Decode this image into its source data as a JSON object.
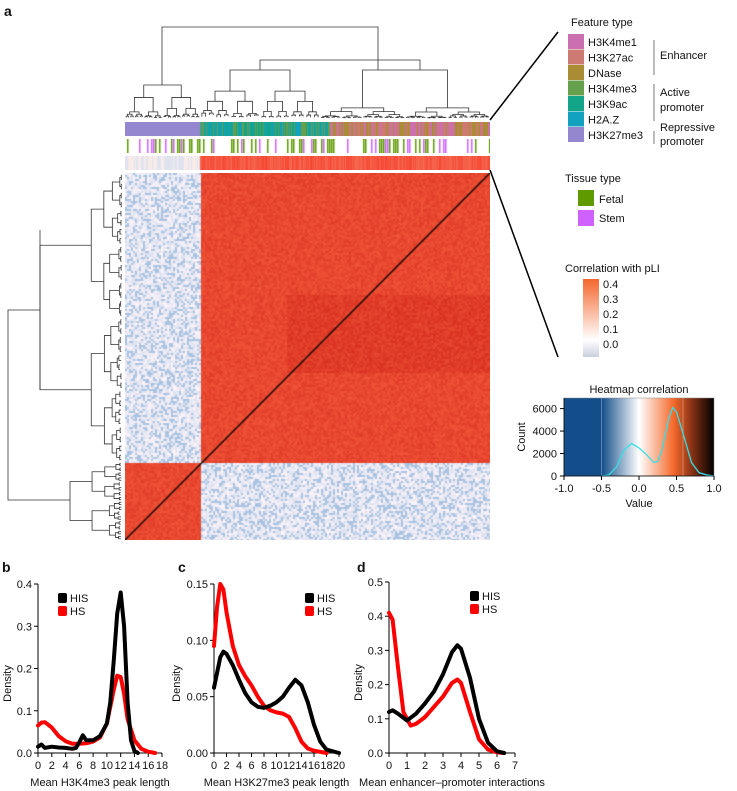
{
  "panel_labels": {
    "a": "a",
    "b": "b",
    "c": "c",
    "d": "d"
  },
  "legend": {
    "feature_type": {
      "title": "Feature type",
      "items": [
        {
          "label": "H3K4me1",
          "color": "#cc6fb0"
        },
        {
          "label": "H3K27ac",
          "color": "#cd7a72"
        },
        {
          "label": "DNase",
          "color": "#a98c33"
        },
        {
          "label": "H3K4me3",
          "color": "#67a04a"
        },
        {
          "label": "H3K9ac",
          "color": "#12a58a"
        },
        {
          "label": "H2A.Z",
          "color": "#12a1be"
        },
        {
          "label": "H3K27me3",
          "color": "#9487d0"
        }
      ],
      "groups": {
        "enhancer": "Enhancer",
        "active_1": "Active",
        "active_2": "promoter",
        "repressive_1": "Repressive",
        "repressive_2": "promoter"
      }
    },
    "tissue_type": {
      "title": "Tissue type",
      "items": [
        {
          "label": "Fetal",
          "color": "#5e9a00"
        },
        {
          "label": "Stem",
          "color": "#cf62ff"
        }
      ]
    },
    "pli": {
      "title": "Correlation with pLI",
      "ticks": [
        "0.4",
        "0.3",
        "0.2",
        "0.1",
        "0.0"
      ]
    }
  },
  "colors": {
    "his": "#000000",
    "hs": "#ff0000",
    "heat_high": "#f26b3a",
    "heat_low": "#2f6aa6",
    "histline": "#33e0e8"
  },
  "chart_data": [
    {
      "type": "histogram",
      "title": "Heatmap correlation",
      "xlabel": "Value",
      "ylabel": "Count",
      "xlim": [
        -1,
        1
      ],
      "ylim": [
        0,
        6500
      ],
      "xticks": [
        "-1.0",
        "-0.5",
        "0.0",
        "0.5",
        "1.0"
      ],
      "yticks": [
        "0",
        "2000",
        "4000",
        "6000"
      ],
      "x": [
        -0.5,
        -0.4,
        -0.3,
        -0.2,
        -0.1,
        0,
        0.1,
        0.2,
        0.25,
        0.3,
        0.4,
        0.45,
        0.5,
        0.6,
        0.7,
        0.8,
        0.9,
        1.0
      ],
      "values": [
        0,
        100,
        800,
        2300,
        2900,
        2500,
        1900,
        1200,
        1300,
        2200,
        5200,
        6100,
        5700,
        3500,
        1200,
        300,
        100,
        0
      ]
    },
    {
      "type": "line",
      "xlabel": "Mean H3K4me3 peak length",
      "ylabel": "Density",
      "xlim": [
        0,
        18
      ],
      "ylim": [
        0,
        0.4
      ],
      "xticks": [
        "0",
        "2",
        "4",
        "6",
        "8",
        "10",
        "12",
        "14",
        "16",
        "18"
      ],
      "yticks": [
        "0.0",
        "0.1",
        "0.2",
        "0.3",
        "0.4"
      ],
      "legend": "top-left",
      "series": [
        {
          "name": "HIS",
          "x": [
            0,
            0.5,
            1,
            2,
            3,
            4,
            5,
            5.5,
            6,
            6.5,
            7,
            8,
            9,
            10,
            10.5,
            11,
            11.5,
            12,
            12.5,
            13,
            13.5,
            14,
            14.5
          ],
          "values": [
            0.015,
            0.02,
            0.012,
            0.015,
            0.013,
            0.012,
            0.01,
            0.012,
            0.025,
            0.042,
            0.03,
            0.03,
            0.04,
            0.07,
            0.12,
            0.22,
            0.33,
            0.38,
            0.3,
            0.12,
            0.03,
            0.005,
            0
          ]
        },
        {
          "name": "HS",
          "x": [
            0,
            0.5,
            1,
            2,
            3,
            4,
            5,
            6,
            7,
            8,
            9,
            10,
            11,
            11.5,
            12,
            12.5,
            13,
            14,
            15,
            16,
            17
          ],
          "values": [
            0.065,
            0.072,
            0.073,
            0.06,
            0.04,
            0.028,
            0.022,
            0.022,
            0.023,
            0.027,
            0.037,
            0.07,
            0.15,
            0.183,
            0.18,
            0.14,
            0.08,
            0.03,
            0.01,
            0.003,
            0
          ]
        }
      ]
    },
    {
      "type": "line",
      "xlabel": "Mean H3K27me3 peak length",
      "ylabel": "Density",
      "xlim": [
        0,
        20
      ],
      "ylim": [
        0,
        0.15
      ],
      "xticks": [
        "0",
        "2",
        "4",
        "6",
        "8",
        "10",
        "12",
        "14",
        "16",
        "18",
        "20"
      ],
      "yticks": [
        "0.00",
        "0.05",
        "0.10",
        "0.15"
      ],
      "legend": "top-right",
      "series": [
        {
          "name": "HIS",
          "x": [
            0,
            1,
            1.5,
            2,
            3,
            4,
            5,
            6,
            7,
            8,
            9,
            10,
            11,
            12,
            13,
            14,
            15,
            16,
            17,
            18,
            20
          ],
          "values": [
            0.058,
            0.085,
            0.09,
            0.088,
            0.078,
            0.065,
            0.053,
            0.045,
            0.041,
            0.04,
            0.042,
            0.045,
            0.05,
            0.058,
            0.065,
            0.06,
            0.045,
            0.025,
            0.01,
            0.003,
            0
          ]
        },
        {
          "name": "HS",
          "x": [
            0,
            0.5,
            1,
            1.5,
            2,
            3,
            4,
            5,
            6,
            7,
            8,
            9,
            10,
            11,
            12,
            13,
            14,
            15,
            16,
            18
          ],
          "values": [
            0.095,
            0.13,
            0.15,
            0.145,
            0.125,
            0.095,
            0.078,
            0.068,
            0.06,
            0.05,
            0.042,
            0.038,
            0.036,
            0.035,
            0.032,
            0.022,
            0.01,
            0.004,
            0.002,
            0
          ]
        }
      ]
    },
    {
      "type": "line",
      "xlabel": "Mean enhancer–promoter interactions",
      "ylabel": "Density",
      "xlim": [
        0,
        7
      ],
      "ylim": [
        0,
        0.5
      ],
      "xticks": [
        "0",
        "1",
        "2",
        "3",
        "4",
        "5",
        "6",
        "7"
      ],
      "yticks": [
        "0.0",
        "0.1",
        "0.2",
        "0.3",
        "0.4",
        "0.5"
      ],
      "legend": "top-right",
      "series": [
        {
          "name": "HIS",
          "x": [
            0,
            0.2,
            0.5,
            1,
            1.5,
            2,
            2.5,
            3,
            3.5,
            3.8,
            4,
            4.5,
            5,
            5.5,
            6,
            6.4
          ],
          "values": [
            0.12,
            0.125,
            0.115,
            0.095,
            0.115,
            0.145,
            0.18,
            0.23,
            0.295,
            0.315,
            0.305,
            0.22,
            0.1,
            0.03,
            0.005,
            0
          ]
        },
        {
          "name": "HS",
          "x": [
            0,
            0.2,
            0.5,
            0.8,
            1.2,
            1.5,
            2,
            2.5,
            3,
            3.5,
            3.8,
            4,
            4.5,
            5,
            5.5,
            6,
            6.3
          ],
          "values": [
            0.41,
            0.39,
            0.25,
            0.12,
            0.08,
            0.085,
            0.105,
            0.135,
            0.165,
            0.205,
            0.215,
            0.205,
            0.12,
            0.04,
            0.01,
            0.002,
            0
          ]
        }
      ]
    }
  ]
}
